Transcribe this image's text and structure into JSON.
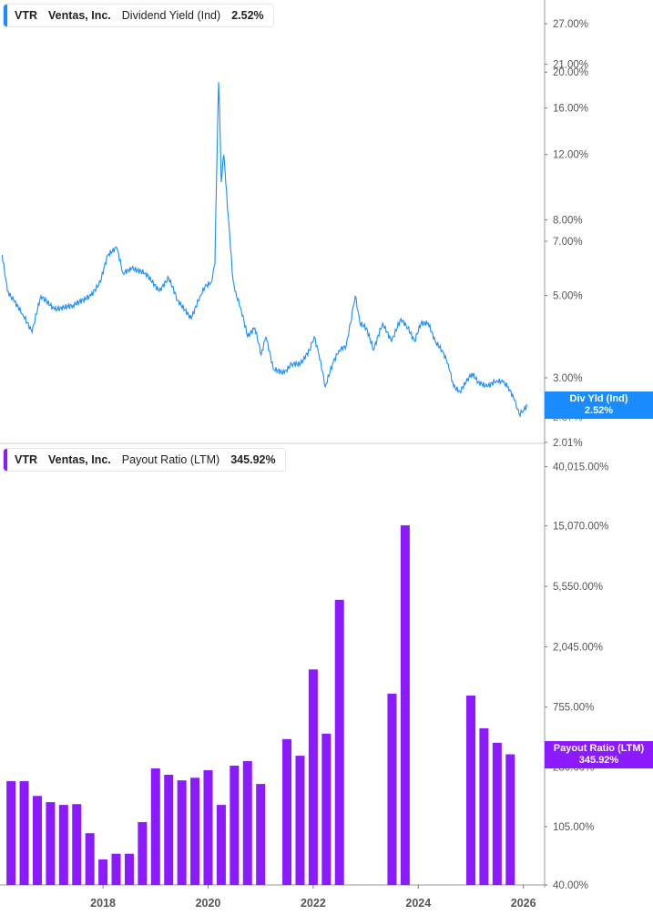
{
  "panels": {
    "top": {
      "ticker": "VTR",
      "company": "Ventas, Inc.",
      "metric": "Dividend Yield (Ind)",
      "value": "2.52%"
    },
    "bottom": {
      "ticker": "VTR",
      "company": "Ventas, Inc.",
      "metric": "Payout Ratio (LTM)",
      "value": "345.92%"
    }
  },
  "tags": {
    "top": {
      "label": "Div Yld (Ind)",
      "value": "2.52%",
      "hidden_tick": "2.37%"
    },
    "bottom": {
      "label": "Payout Ratio (LTM)",
      "value": "345.92%",
      "hidden_tick": "280.00%"
    }
  },
  "colors": {
    "line": "#1a8cff",
    "bar": "#8c1aff",
    "tag_top": "#1a8cff",
    "tag_bottom": "#8c1aff"
  },
  "chart_data": [
    {
      "type": "line",
      "title": "VTR Ventas, Inc. Dividend Yield (Ind) 2.52%",
      "yscale": "log",
      "ylim": [
        2.01,
        30
      ],
      "yticks": [
        2.01,
        3.0,
        5.0,
        7.0,
        8.0,
        12.0,
        16.0,
        20.0,
        21.0,
        27.0
      ],
      "ytick_labels": [
        "2.01%",
        "3.00%",
        "5.00%",
        "7.00%",
        "8.00%",
        "12.00%",
        "16.00%",
        "20.00%",
        "21.00%",
        "27.00%"
      ],
      "points": [
        [
          2016.08,
          6.43
        ],
        [
          2016.18,
          5.13
        ],
        [
          2016.3,
          4.85
        ],
        [
          2016.47,
          4.46
        ],
        [
          2016.65,
          3.98
        ],
        [
          2016.82,
          4.99
        ],
        [
          2017.08,
          4.58
        ],
        [
          2017.43,
          4.71
        ],
        [
          2017.77,
          4.99
        ],
        [
          2017.95,
          5.43
        ],
        [
          2018.09,
          6.43
        ],
        [
          2018.26,
          6.73
        ],
        [
          2018.38,
          5.75
        ],
        [
          2018.55,
          5.91
        ],
        [
          2018.81,
          5.75
        ],
        [
          2019.07,
          5.13
        ],
        [
          2019.25,
          5.58
        ],
        [
          2019.42,
          4.85
        ],
        [
          2019.68,
          4.33
        ],
        [
          2019.85,
          4.99
        ],
        [
          2019.94,
          5.28
        ],
        [
          2020.06,
          5.43
        ],
        [
          2020.13,
          6.08
        ],
        [
          2020.16,
          10.1
        ],
        [
          2020.2,
          18.8
        ],
        [
          2020.25,
          10.1
        ],
        [
          2020.3,
          11.97
        ],
        [
          2020.37,
          8.53
        ],
        [
          2020.46,
          5.75
        ],
        [
          2020.51,
          5.13
        ],
        [
          2020.63,
          4.58
        ],
        [
          2020.75,
          3.87
        ],
        [
          2020.89,
          4.09
        ],
        [
          2021.01,
          3.46
        ],
        [
          2021.1,
          3.87
        ],
        [
          2021.24,
          3.17
        ],
        [
          2021.45,
          3.09
        ],
        [
          2021.59,
          3.27
        ],
        [
          2021.76,
          3.27
        ],
        [
          2021.93,
          3.56
        ],
        [
          2022.02,
          3.87
        ],
        [
          2022.11,
          3.46
        ],
        [
          2022.23,
          2.84
        ],
        [
          2022.37,
          3.27
        ],
        [
          2022.49,
          3.56
        ],
        [
          2022.63,
          3.66
        ],
        [
          2022.71,
          4.21
        ],
        [
          2022.8,
          4.99
        ],
        [
          2022.89,
          4.21
        ],
        [
          2023.01,
          4.09
        ],
        [
          2023.15,
          3.56
        ],
        [
          2023.32,
          4.21
        ],
        [
          2023.49,
          3.76
        ],
        [
          2023.67,
          4.33
        ],
        [
          2023.8,
          4.09
        ],
        [
          2023.93,
          3.76
        ],
        [
          2024.05,
          4.21
        ],
        [
          2024.19,
          4.21
        ],
        [
          2024.32,
          3.76
        ],
        [
          2024.45,
          3.56
        ],
        [
          2024.57,
          3.27
        ],
        [
          2024.67,
          2.84
        ],
        [
          2024.79,
          2.76
        ],
        [
          2024.91,
          2.92
        ],
        [
          2025.02,
          3.09
        ],
        [
          2025.14,
          2.92
        ],
        [
          2025.31,
          2.84
        ],
        [
          2025.49,
          2.95
        ],
        [
          2025.61,
          2.92
        ],
        [
          2025.71,
          2.84
        ],
        [
          2025.83,
          2.61
        ],
        [
          2025.92,
          2.39
        ],
        [
          2026.01,
          2.46
        ],
        [
          2026.08,
          2.53
        ]
      ]
    },
    {
      "type": "bar",
      "title": "VTR Ventas, Inc. Payout Ratio (LTM) 345.92%",
      "yscale": "log",
      "ylim": [
        40,
        40015
      ],
      "yticks": [
        40,
        105,
        280,
        755,
        2045,
        5550,
        15070,
        40015
      ],
      "ytick_labels": [
        "40.00%",
        "105.00%",
        "280.00%",
        "755.00%",
        "2,045.00%",
        "5,550.00%",
        "15,070.00%",
        "40,015.00%"
      ],
      "xticks": [
        "2018",
        "2020",
        "2022",
        "2024",
        "2026"
      ],
      "xlim": [
        2016.04,
        2026.4
      ],
      "bars": [
        {
          "period": "2016 Q2",
          "value": 222
        },
        {
          "period": "2016 Q3",
          "value": 222
        },
        {
          "period": "2016 Q4",
          "value": 174
        },
        {
          "period": "2017 Q1",
          "value": 157
        },
        {
          "period": "2017 Q2",
          "value": 150
        },
        {
          "period": "2017 Q3",
          "value": 152
        },
        {
          "period": "2017 Q4",
          "value": 94
        },
        {
          "period": "2018 Q1",
          "value": 61
        },
        {
          "period": "2018 Q2",
          "value": 67
        },
        {
          "period": "2018 Q3",
          "value": 67
        },
        {
          "period": "2018 Q4",
          "value": 113
        },
        {
          "period": "2019 Q1",
          "value": 274
        },
        {
          "period": "2019 Q2",
          "value": 247
        },
        {
          "period": "2019 Q3",
          "value": 225
        },
        {
          "period": "2019 Q4",
          "value": 235
        },
        {
          "period": "2020 Q1",
          "value": 266
        },
        {
          "period": "2020 Q2",
          "value": 150
        },
        {
          "period": "2020 Q3",
          "value": 287
        },
        {
          "period": "2020 Q4",
          "value": 309
        },
        {
          "period": "2021 Q1",
          "value": 212
        },
        {
          "period": "2021 Q3",
          "value": 445
        },
        {
          "period": "2021 Q4",
          "value": 338
        },
        {
          "period": "2022 Q1",
          "value": 1406
        },
        {
          "period": "2022 Q2",
          "value": 487
        },
        {
          "period": "2022 Q3",
          "value": 4440
        },
        {
          "period": "2023 Q3",
          "value": 942
        },
        {
          "period": "2023 Q4",
          "value": 15200
        },
        {
          "period": "2025 Q1",
          "value": 913
        },
        {
          "period": "2025 Q2",
          "value": 532
        },
        {
          "period": "2025 Q3",
          "value": 419
        },
        {
          "period": "2025 Q4",
          "value": 346
        }
      ]
    }
  ]
}
